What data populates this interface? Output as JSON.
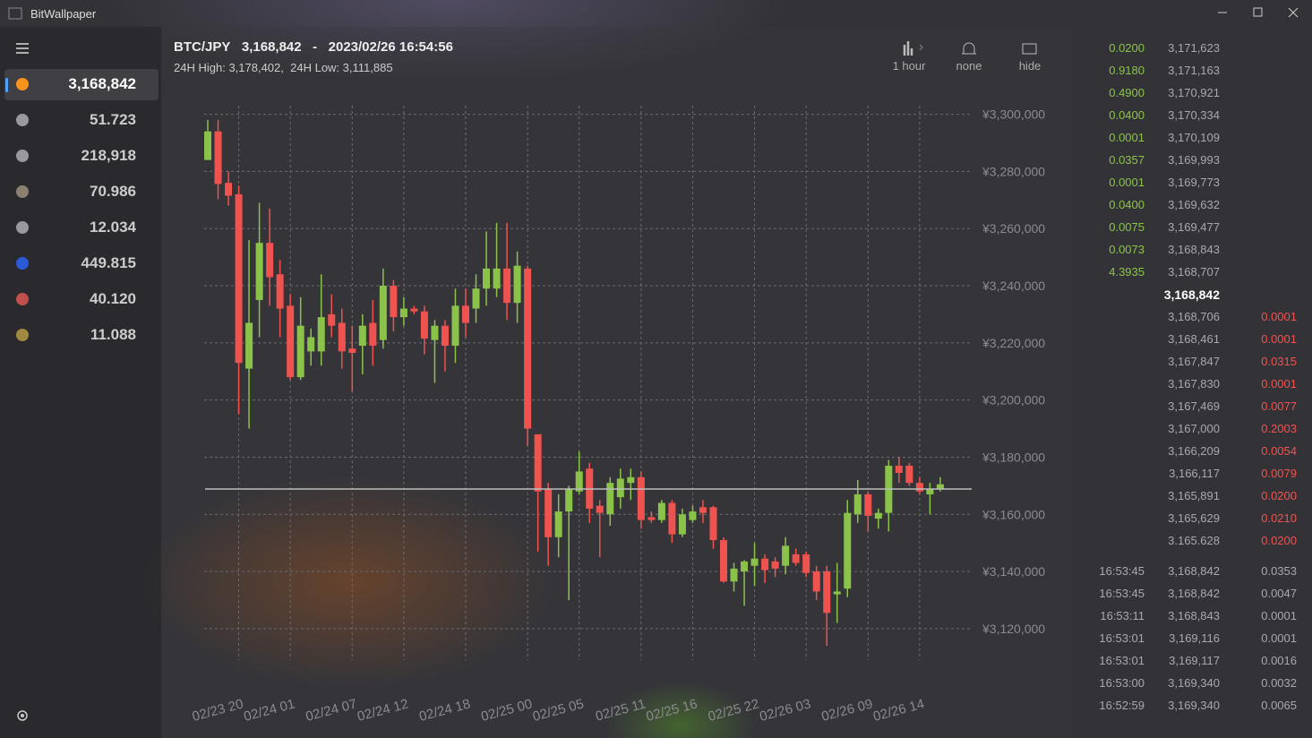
{
  "app": {
    "title": "BitWallpaper"
  },
  "sidebar": {
    "coins": [
      {
        "value": "3,168,842",
        "icon_color": "#f7931a"
      },
      {
        "value": "51.723",
        "icon_color": "#9a9a9e"
      },
      {
        "value": "218,918",
        "icon_color": "#9a9a9e"
      },
      {
        "value": "70.986",
        "icon_color": "#8c8070"
      },
      {
        "value": "12.034",
        "icon_color": "#9a9a9e"
      },
      {
        "value": "449.815",
        "icon_color": "#2a5ada"
      },
      {
        "value": "40.120",
        "icon_color": "#c0504d"
      },
      {
        "value": "11.088",
        "icon_color": "#a08a40"
      }
    ]
  },
  "header": {
    "pair": "BTC/JPY",
    "price": "3,168,842",
    "separator": "-",
    "datetime": "2023/02/26 16:54:56",
    "high_label": "24H High:",
    "high": "3,178,402,",
    "low_label": "24H Low:",
    "low": "3,111,885"
  },
  "toolbar": [
    {
      "label": "1 hour"
    },
    {
      "label": "none"
    },
    {
      "label": "hide"
    }
  ],
  "chart_data": {
    "type": "candlestick",
    "categories": [
      null,
      null,
      null,
      "02/23 20",
      null,
      null,
      null,
      null,
      "02/24 01",
      null,
      null,
      null,
      null,
      null,
      "02/24 07",
      null,
      null,
      null,
      null,
      "02/24 12",
      null,
      null,
      null,
      null,
      null,
      "02/24 18",
      null,
      null,
      null,
      null,
      null,
      "02/25 00",
      null,
      null,
      null,
      null,
      "02/25 05",
      null,
      null,
      null,
      null,
      null,
      "02/25 11",
      null,
      null,
      null,
      null,
      "02/25 16",
      null,
      null,
      null,
      null,
      null,
      "02/25 22",
      null,
      null,
      null,
      null,
      "02/26 03",
      null,
      null,
      null,
      null,
      null,
      "02/26 09",
      null,
      null,
      null,
      null,
      "02/26 14",
      null,
      null
    ],
    "open": [
      3284000,
      3294000,
      3276000,
      3272000,
      3211000,
      3235000,
      3255000,
      3244000,
      3233000,
      3208000,
      3217000,
      3217000,
      3230000,
      3227000,
      3218000,
      3219000,
      3227000,
      3221000,
      3240000,
      3229000,
      3232000,
      3231000,
      3221000,
      3226000,
      3219000,
      3233000,
      3232000,
      3239000,
      3239000,
      3246000,
      3234000,
      3246000,
      3188000,
      3169000,
      3152000,
      3161000,
      3168000,
      3176000,
      3163000,
      3160000,
      3166000,
      3171000,
      3173000,
      3159000,
      3158000,
      3164000,
      3153000,
      3158000,
      3162500,
      3162500,
      3151000,
      3136500,
      3140000,
      3142000,
      3144500,
      3143500,
      3142000,
      3146000,
      3146000,
      3140000,
      3140000,
      3132000,
      3134000,
      3160000,
      3167000,
      3158500,
      3160500,
      3177000,
      3177000,
      3171000,
      3167000,
      3169000
    ],
    "high": [
      3298000,
      3298000,
      3280000,
      3275000,
      3256000,
      3269000,
      3267000,
      3249000,
      3237000,
      3236000,
      3225000,
      3244000,
      3237000,
      3232000,
      3226000,
      3230000,
      3235000,
      3246000,
      3242000,
      3236000,
      3233000,
      3233000,
      3228000,
      3228000,
      3239000,
      3239000,
      3244000,
      3259000,
      3262000,
      3262000,
      3252000,
      3247000,
      3188000,
      3171000,
      3167000,
      3170000,
      3182000,
      3178000,
      3165000,
      3173000,
      3176000,
      3176000,
      3175000,
      3161000,
      3165000,
      3165000,
      3162000,
      3163000,
      3165000,
      3163000,
      3152000,
      3143000,
      3144000,
      3150000,
      3146000,
      3145000,
      3152000,
      3148000,
      3147000,
      3142000,
      3142000,
      3143000,
      3165000,
      3172000,
      3168000,
      3162000,
      3179000,
      3180000,
      3178000,
      3173000,
      3171000,
      3173000
    ],
    "low": [
      3284000,
      3270300,
      3268000,
      3195000,
      3190000,
      3222000,
      3233000,
      3222000,
      3207000,
      3207000,
      3212000,
      3212000,
      3222000,
      3211000,
      3203000,
      3209000,
      3212000,
      3218000,
      3224000,
      3226000,
      3230000,
      3216000,
      3206000,
      3210000,
      3213000,
      3222000,
      3227000,
      3233000,
      3236000,
      3228000,
      3227000,
      3184000,
      3147000,
      3142000,
      3145000,
      3130000,
      3167000,
      3157000,
      3145000,
      3156000,
      3162000,
      3165000,
      3155000,
      3157000,
      3157000,
      3150000,
      3152000,
      3157000,
      3157000,
      3148000,
      3136000,
      3133000,
      3128000,
      3135000,
      3136000,
      3138000,
      3139000,
      3142000,
      3138000,
      3130000,
      3114000,
      3122000,
      3131000,
      3157000,
      3154000,
      3155000,
      3154000,
      3171000,
      3170000,
      3167000,
      3160000,
      3168000
    ],
    "close": [
      3294000,
      3275600,
      3271500,
      3213000,
      3227000,
      3255000,
      3243000,
      3232000,
      3208000,
      3226000,
      3222000,
      3229000,
      3226000,
      3217000,
      3216500,
      3226000,
      3219000,
      3240000,
      3229000,
      3232000,
      3231000,
      3221500,
      3226000,
      3219000,
      3233000,
      3227000,
      3239000,
      3246000,
      3246000,
      3234000,
      3247000,
      3190000,
      3168000,
      3152000,
      3161000,
      3169000,
      3175000,
      3162000,
      3160500,
      3171000,
      3172500,
      3173000,
      3158000,
      3158000,
      3164000,
      3153000,
      3160000,
      3161000,
      3160500,
      3151000,
      3136500,
      3141000,
      3143500,
      3144500,
      3140500,
      3141000,
      3149000,
      3143000,
      3139500,
      3133000,
      3125500,
      3133000,
      3160500,
      3167000,
      3159500,
      3160500,
      3177000,
      3174500,
      3171000,
      3168000,
      3169000,
      3170500
    ],
    "up_color": "#8bc34a",
    "down_color": "#ef5350",
    "price_line": 3168842,
    "ylim": [
      3109000,
      3303000
    ],
    "yticks": [
      {
        "value": 3120000,
        "label": "¥3,120,000"
      },
      {
        "value": 3140000,
        "label": "¥3,140,000"
      },
      {
        "value": 3160000,
        "label": "¥3,160,000"
      },
      {
        "value": 3180000,
        "label": "¥3,180,000"
      },
      {
        "value": 3200000,
        "label": "¥3,200,000"
      },
      {
        "value": 3220000,
        "label": "¥3,220,000"
      },
      {
        "value": 3240000,
        "label": "¥3,240,000"
      },
      {
        "value": 3260000,
        "label": "¥3,260,000"
      },
      {
        "value": 3280000,
        "label": "¥3,280,000"
      },
      {
        "value": 3300000,
        "label": "¥3,300,000"
      }
    ],
    "grid": true
  },
  "order_book": {
    "asks": [
      {
        "size": "0.0200",
        "price": "3,171,623"
      },
      {
        "size": "0.9180",
        "price": "3,171,163"
      },
      {
        "size": "0.4900",
        "price": "3,170,921"
      },
      {
        "size": "0.0400",
        "price": "3,170,334"
      },
      {
        "size": "0.0001",
        "price": "3,170,109"
      },
      {
        "size": "0.0357",
        "price": "3,169,993"
      },
      {
        "size": "0.0001",
        "price": "3,169,773"
      },
      {
        "size": "0.0400",
        "price": "3,169,632"
      },
      {
        "size": "0.0075",
        "price": "3,169,477"
      },
      {
        "size": "0.0073",
        "price": "3,168,843"
      },
      {
        "size": "4.3935",
        "price": "3,168,707"
      }
    ],
    "mid": "3,168,842",
    "bids": [
      {
        "price": "3,168,706",
        "size": "0.0001"
      },
      {
        "price": "3,168,461",
        "size": "0.0001"
      },
      {
        "price": "3,167,847",
        "size": "0.0315"
      },
      {
        "price": "3,167,830",
        "size": "0.0001"
      },
      {
        "price": "3,167,469",
        "size": "0.0077"
      },
      {
        "price": "3,167,000",
        "size": "0.2003"
      },
      {
        "price": "3,166,209",
        "size": "0.0054"
      },
      {
        "price": "3,166,117",
        "size": "0.0079"
      },
      {
        "price": "3,165,891",
        "size": "0.0200"
      },
      {
        "price": "3,165,629",
        "size": "0.0210"
      },
      {
        "price": "3,165,628",
        "size": "0.0200"
      }
    ]
  },
  "trades": [
    {
      "time": "16:53:45",
      "price": "3,168,842",
      "size": "0.0353"
    },
    {
      "time": "16:53:45",
      "price": "3,168,842",
      "size": "0.0047"
    },
    {
      "time": "16:53:11",
      "price": "3,168,843",
      "size": "0.0001"
    },
    {
      "time": "16:53:01",
      "price": "3,169,116",
      "size": "0.0001"
    },
    {
      "time": "16:53:01",
      "price": "3,169,117",
      "size": "0.0016"
    },
    {
      "time": "16:53:00",
      "price": "3,169,340",
      "size": "0.0032"
    },
    {
      "time": "16:52:59",
      "price": "3,169,340",
      "size": "0.0065"
    }
  ]
}
